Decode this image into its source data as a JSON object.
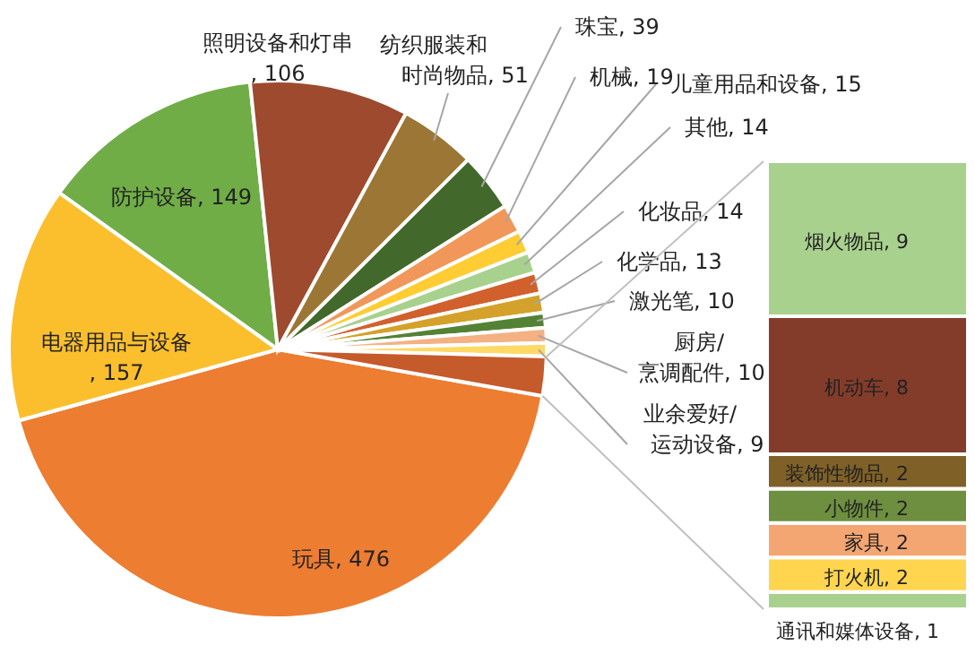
{
  "chart_data": [
    {
      "type": "pie",
      "value_labels": [
        ", 476",
        ", 157",
        ", 149",
        ", 106",
        ", 51",
        ", 39",
        ", 19",
        ", 15",
        ", 14",
        ", 14",
        ", 13",
        ", 10",
        ", 10",
        ", 9",
        null
      ],
      "categories": [
        "玩具",
        "电器用品与设备",
        "防护设备",
        "照明设备和灯串",
        "纺织服装和时尚物品",
        "珠宝",
        "机械",
        "儿童用品和设备",
        "其他",
        "化妆品",
        "化学品",
        "激光笔",
        "厨房/烹调配件",
        "业余爱好/运动设备",
        null
      ],
      "values": [
        476,
        157,
        149,
        106,
        51,
        39,
        19,
        15,
        14,
        14,
        13,
        10,
        10,
        9,
        26
      ],
      "colors": [
        "#ed7d31",
        "#fbbf2e",
        "#70ad47",
        "#9e4a2e",
        "#9c7634",
        "#43682b",
        "#f1975a",
        "#ffcd33",
        "#a9d18e",
        "#d2602d",
        "#d4a22a",
        "#548235",
        "#f4b183",
        "#ffd966",
        "#c55a2b"
      ]
    },
    {
      "type": "bar",
      "stacked": true,
      "categories": [
        null
      ],
      "series": [
        {
          "name": "通讯和媒体设备",
          "color": "#a9d18e",
          "values": [
            1
          ],
          "value_labels": [
            ", 1"
          ]
        },
        {
          "name": "打火机",
          "color": "#ffd54f",
          "values": [
            2
          ],
          "value_labels": [
            ", 2"
          ]
        },
        {
          "name": "家具",
          "color": "#f4a672",
          "values": [
            2
          ],
          "value_labels": [
            ", 2"
          ]
        },
        {
          "name": "小物件",
          "color": "#6e8f3f",
          "values": [
            2
          ],
          "value_labels": [
            ", 2"
          ]
        },
        {
          "name": "装饰性物品",
          "color": "#7f6128",
          "values": [
            2
          ],
          "value_labels": [
            ", 2"
          ]
        },
        {
          "name": "机动车",
          "color": "#843c2a",
          "values": [
            8
          ],
          "value_labels": [
            ", 8"
          ]
        },
        {
          "name": "烟火物品",
          "color": "#a9d18e",
          "values": [
            9
          ],
          "value_labels": [
            ", 9"
          ]
        }
      ]
    }
  ]
}
